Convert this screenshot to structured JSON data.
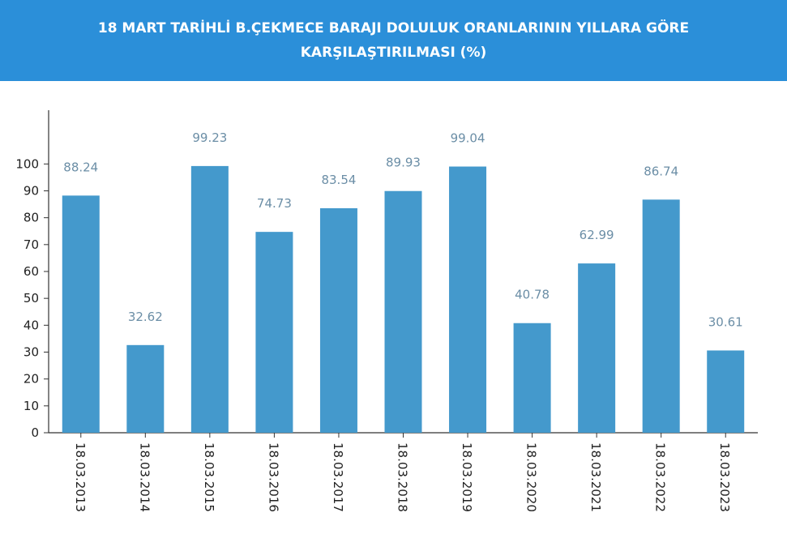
{
  "chart_data": {
    "type": "bar",
    "title": "18 MART TARİHLİ B.ÇEKMECE BARAJI DOLULUK ORANLARININ YILLARA GÖRE KARŞILAŞTIRILMASI (%)",
    "categories": [
      "18.03.2013",
      "18.03.2014",
      "18.03.2015",
      "18.03.2016",
      "18.03.2017",
      "18.03.2018",
      "18.03.2019",
      "18.03.2020",
      "18.03.2021",
      "18.03.2022",
      "18.03.2023"
    ],
    "values": [
      88.24,
      32.62,
      99.23,
      74.73,
      83.54,
      89.93,
      99.04,
      40.78,
      62.99,
      86.74,
      30.61
    ],
    "color": "#4499cc",
    "ylim": [
      0,
      120
    ],
    "yticks": [
      0,
      10,
      20,
      30,
      40,
      50,
      60,
      70,
      80,
      90,
      100
    ],
    "grid": false
  }
}
